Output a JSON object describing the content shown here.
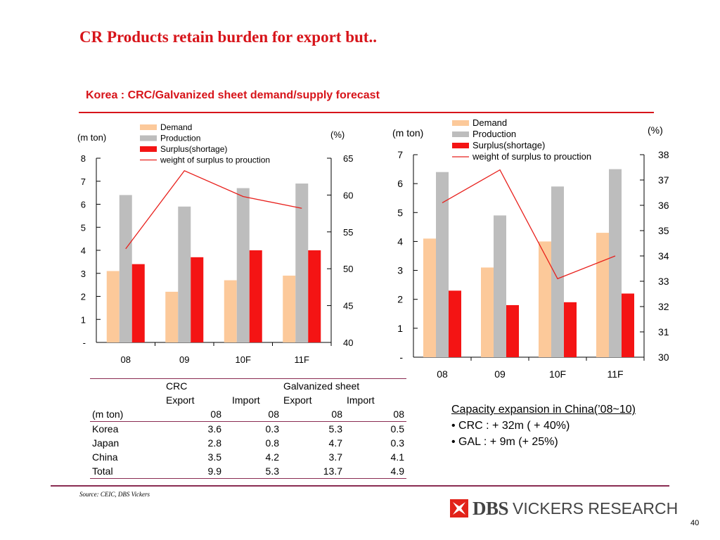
{
  "title": "CR Products retain burden for export but..",
  "subtitle": "Korea : CRC/Galvanized  sheet demand/supply forecast",
  "colors": {
    "demand": "#fcc99a",
    "production": "#bdbdbd",
    "surplus": "#f41414",
    "weight_line": "#e8201c",
    "accent": "#d7141a",
    "rule": "#8a2b52"
  },
  "chart_data": [
    {
      "type": "bar",
      "categories": [
        "08",
        "09",
        "10F",
        "11F"
      ],
      "ylabel_left": "(m ton)",
      "ylabel_right": "(%)",
      "ylim_left": [
        0,
        8
      ],
      "ylim_right": [
        40,
        65
      ],
      "left_ticks": [
        "-",
        "1",
        "2",
        "3",
        "4",
        "5",
        "6",
        "7",
        "8"
      ],
      "right_ticks": [
        "40",
        "45",
        "50",
        "55",
        "60",
        "65"
      ],
      "legend_position": "top-left",
      "series": [
        {
          "name": "Demand",
          "kind": "bar",
          "axis": "left",
          "values": [
            3.1,
            2.2,
            2.7,
            2.9
          ]
        },
        {
          "name": "Production",
          "kind": "bar",
          "axis": "left",
          "values": [
            6.4,
            5.9,
            6.7,
            6.9
          ]
        },
        {
          "name": "Surplus(shortage)",
          "kind": "bar",
          "axis": "left",
          "values": [
            3.4,
            3.7,
            4.0,
            4.0
          ]
        },
        {
          "name": "weight of surplus to prouction",
          "kind": "line",
          "axis": "right",
          "values": [
            52.7,
            63.3,
            59.8,
            58.2
          ]
        }
      ]
    },
    {
      "type": "bar",
      "categories": [
        "08",
        "09",
        "10F",
        "11F"
      ],
      "ylabel_left": "(m ton)",
      "ylabel_right": "(%)",
      "ylim_left": [
        0,
        7
      ],
      "ylim_right": [
        30,
        38
      ],
      "left_ticks": [
        "-",
        "1",
        "2",
        "3",
        "4",
        "5",
        "6",
        "7"
      ],
      "right_ticks": [
        "30",
        "31",
        "32",
        "33",
        "34",
        "35",
        "36",
        "37",
        "38"
      ],
      "legend_position": "top-left",
      "series": [
        {
          "name": "Demand",
          "kind": "bar",
          "axis": "left",
          "values": [
            4.1,
            3.1,
            4.0,
            4.3
          ]
        },
        {
          "name": "Production",
          "kind": "bar",
          "axis": "left",
          "values": [
            6.4,
            4.9,
            5.9,
            6.5
          ]
        },
        {
          "name": "Surplus(shortage)",
          "kind": "bar",
          "axis": "left",
          "values": [
            2.3,
            1.8,
            1.9,
            2.2
          ]
        },
        {
          "name": "weight of surplus to prouction",
          "kind": "line",
          "axis": "right",
          "values": [
            36.1,
            37.4,
            33.1,
            34.0
          ]
        }
      ]
    }
  ],
  "table": {
    "group_header": [
      "",
      "CRC",
      "",
      "Galvanized sheet",
      ""
    ],
    "sub_header": [
      "",
      "Export",
      "Import",
      "Export",
      "Import"
    ],
    "unit_row": [
      "(m ton)",
      "08",
      "08",
      "08",
      "08"
    ],
    "rows": [
      [
        "Korea",
        "3.6",
        "0.3",
        "5.3",
        "0.5"
      ],
      [
        "Japan",
        "2.8",
        "0.8",
        "4.7",
        "0.3"
      ],
      [
        "China",
        "3.5",
        "4.2",
        "3.7",
        "4.1"
      ],
      [
        "Total",
        "9.9",
        "5.3",
        "13.7",
        "4.9"
      ]
    ]
  },
  "capacity": {
    "heading": "Capacity expansion in China(’08~10)",
    "items": [
      "• CRC : + 32m ( + 40%)",
      "• GAL : + 9m  (+ 25%)"
    ]
  },
  "source": "Source: CEIC, DBS Vickers",
  "logo": {
    "brand": "DBS",
    "tagline": "VICKERS RESEARCH"
  },
  "page_number": "40"
}
